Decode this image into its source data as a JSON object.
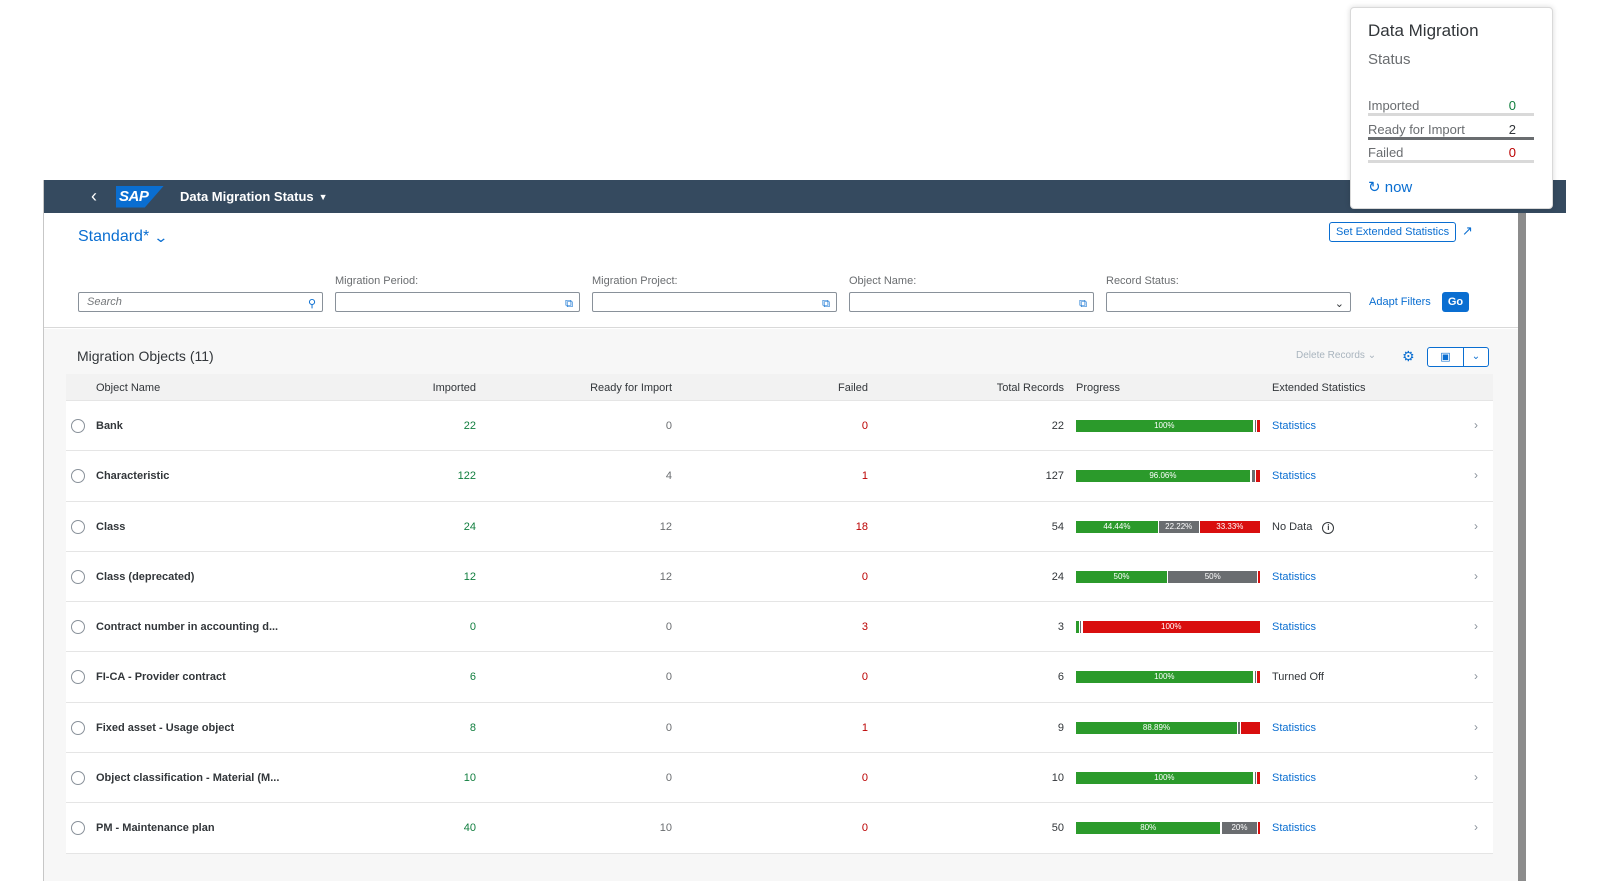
{
  "shell": {
    "title": "Data Migration Status",
    "logo": "SAP"
  },
  "header": {
    "variant": "Standard*",
    "set_ext_label": "Set Extended Statistics",
    "filters": {
      "search_placeholder": "Search",
      "migration_period_label": "Migration Period:",
      "migration_project_label": "Migration Project:",
      "object_name_label": "Object Name:",
      "record_status_label": "Record Status:"
    },
    "adapt_filters": "Adapt Filters",
    "go": "Go"
  },
  "table": {
    "title": "Migration Objects (11)",
    "delete_label": "Delete Records",
    "columns": {
      "object_name": "Object Name",
      "imported": "Imported",
      "ready": "Ready for Import",
      "failed": "Failed",
      "total": "Total Records",
      "progress": "Progress",
      "extended": "Extended Statistics"
    },
    "rows": [
      {
        "name": "Bank",
        "imported": "22",
        "ready": "0",
        "failed": "0",
        "total": "22",
        "ext": "Statistics",
        "ext_type": "link",
        "progress": [
          {
            "color": "g",
            "pct": 96,
            "label": "100%"
          },
          {
            "color": "gap",
            "pct": 1.2,
            "label": ""
          },
          {
            "color": "y",
            "pct": 0.8,
            "label": ""
          },
          {
            "color": "gap",
            "pct": 0.6,
            "label": ""
          },
          {
            "color": "r",
            "pct": 1.4,
            "label": ""
          }
        ]
      },
      {
        "name": "Characteristic",
        "imported": "122",
        "ready": "4",
        "failed": "1",
        "total": "127",
        "ext": "Statistics",
        "ext_type": "link",
        "progress": [
          {
            "color": "g",
            "pct": 94.5,
            "label": "96.06%"
          },
          {
            "color": "gap",
            "pct": 1,
            "label": ""
          },
          {
            "color": "y",
            "pct": 2,
            "label": ""
          },
          {
            "color": "gap",
            "pct": 0.5,
            "label": ""
          },
          {
            "color": "r",
            "pct": 2,
            "label": ""
          }
        ]
      },
      {
        "name": "Class",
        "imported": "24",
        "ready": "12",
        "failed": "18",
        "total": "54",
        "ext": "No Data",
        "ext_type": "info",
        "progress": [
          {
            "color": "g",
            "pct": 44.44,
            "label": "44.44%"
          },
          {
            "color": "gap",
            "pct": 0.6,
            "label": ""
          },
          {
            "color": "y",
            "pct": 21.6,
            "label": "22.22%"
          },
          {
            "color": "gap",
            "pct": 0.6,
            "label": ""
          },
          {
            "color": "r",
            "pct": 32.76,
            "label": "33.33%"
          }
        ]
      },
      {
        "name": "Class (deprecated)",
        "imported": "12",
        "ready": "12",
        "failed": "0",
        "total": "24",
        "ext": "Statistics",
        "ext_type": "link",
        "progress": [
          {
            "color": "g",
            "pct": 49.5,
            "label": "50%"
          },
          {
            "color": "gap",
            "pct": 0.6,
            "label": ""
          },
          {
            "color": "y",
            "pct": 48.4,
            "label": "50%"
          },
          {
            "color": "gap",
            "pct": 0.5,
            "label": ""
          },
          {
            "color": "r",
            "pct": 1,
            "label": ""
          }
        ]
      },
      {
        "name": "Contract number in accounting d...",
        "imported": "0",
        "ready": "0",
        "failed": "3",
        "total": "3",
        "ext": "Statistics",
        "ext_type": "link",
        "progress": [
          {
            "color": "g",
            "pct": 1.4,
            "label": ""
          },
          {
            "color": "gap",
            "pct": 0.6,
            "label": ""
          },
          {
            "color": "y",
            "pct": 1,
            "label": ""
          },
          {
            "color": "gap",
            "pct": 0.6,
            "label": ""
          },
          {
            "color": "r",
            "pct": 96.4,
            "label": "100%"
          }
        ]
      },
      {
        "name": "FI-CA - Provider contract",
        "imported": "6",
        "ready": "0",
        "failed": "0",
        "total": "6",
        "ext": "Turned Off",
        "ext_type": "plain",
        "progress": [
          {
            "color": "g",
            "pct": 96,
            "label": "100%"
          },
          {
            "color": "gap",
            "pct": 1.2,
            "label": ""
          },
          {
            "color": "y",
            "pct": 0.8,
            "label": ""
          },
          {
            "color": "gap",
            "pct": 0.6,
            "label": ""
          },
          {
            "color": "r",
            "pct": 1.4,
            "label": ""
          }
        ]
      },
      {
        "name": "Fixed asset - Usage object",
        "imported": "8",
        "ready": "0",
        "failed": "1",
        "total": "9",
        "ext": "Statistics",
        "ext_type": "link",
        "progress": [
          {
            "color": "g",
            "pct": 87.5,
            "label": "88.89%"
          },
          {
            "color": "gap",
            "pct": 0.8,
            "label": ""
          },
          {
            "color": "y",
            "pct": 0.8,
            "label": ""
          },
          {
            "color": "gap",
            "pct": 0.5,
            "label": ""
          },
          {
            "color": "r",
            "pct": 10.4,
            "label": ""
          }
        ]
      },
      {
        "name": "Object classification - Material (M...",
        "imported": "10",
        "ready": "0",
        "failed": "0",
        "total": "10",
        "ext": "Statistics",
        "ext_type": "link",
        "progress": [
          {
            "color": "g",
            "pct": 96,
            "label": "100%"
          },
          {
            "color": "gap",
            "pct": 1.2,
            "label": ""
          },
          {
            "color": "y",
            "pct": 0.8,
            "label": ""
          },
          {
            "color": "gap",
            "pct": 0.6,
            "label": ""
          },
          {
            "color": "r",
            "pct": 1.4,
            "label": ""
          }
        ]
      },
      {
        "name": "PM - Maintenance plan",
        "imported": "40",
        "ready": "10",
        "failed": "0",
        "total": "50",
        "ext": "Statistics",
        "ext_type": "link",
        "progress": [
          {
            "color": "g",
            "pct": 78.5,
            "label": "80%"
          },
          {
            "color": "gap",
            "pct": 0.6,
            "label": ""
          },
          {
            "color": "y",
            "pct": 19.5,
            "label": "20%"
          },
          {
            "color": "gap",
            "pct": 0.4,
            "label": ""
          },
          {
            "color": "r",
            "pct": 1,
            "label": ""
          }
        ]
      }
    ]
  },
  "card": {
    "title": "Data Migration",
    "subtitle": "Status",
    "rows": [
      {
        "label": "Imported",
        "value": "0",
        "color": "#107e3e",
        "fill": 0
      },
      {
        "label": "Ready for Import",
        "value": "2",
        "color": "#32363a",
        "fill": 1
      },
      {
        "label": "Failed",
        "value": "0",
        "color": "#bb0000",
        "fill": 0
      }
    ],
    "refresh": "now"
  }
}
